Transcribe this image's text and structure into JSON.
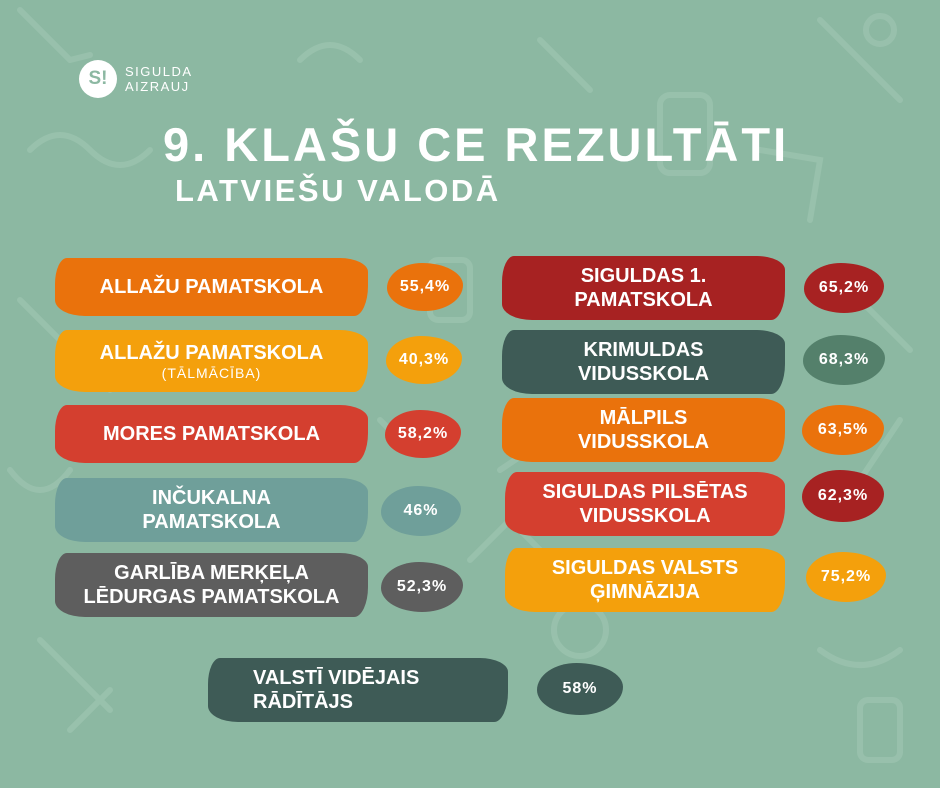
{
  "logo": {
    "mark": "S!",
    "line1": "SIGULDA",
    "line2": "AIZRAUJ"
  },
  "title": "9. KLAŠU CE REZULTĀTI",
  "subtitle": "LATVIEŠU VALODĀ",
  "colors": {
    "background": "#8cb8a2",
    "orange": "#ea720c",
    "yellow": "#f4a00c",
    "red": "#d43f2f",
    "teal": "#6f9f9a",
    "gray": "#5e5e5e",
    "darkred": "#a72222",
    "darkslate": "#3e5b56",
    "green": "#54806b"
  },
  "left_schools": [
    {
      "name_line1": "ALLAŽU PAMATSKOLA",
      "name_line2": "",
      "value": "55,4%"
    },
    {
      "name_line1": "ALLAŽU PAMATSKOLA",
      "name_line2": "",
      "note": "(TĀLMĀCĪBA)",
      "value": "40,3%"
    },
    {
      "name_line1": "MORES PAMATSKOLA",
      "name_line2": "",
      "value": "58,2%"
    },
    {
      "name_line1": "INČUKALNA",
      "name_line2": "PAMATSKOLA",
      "value": "46%"
    },
    {
      "name_line1": "GARLĪBA MERĶEĻA",
      "name_line2": "LĒDURGAS PAMATSKOLA",
      "value": "52,3%"
    }
  ],
  "right_schools": [
    {
      "name_line1": "SIGULDAS 1.",
      "name_line2": "PAMATSKOLA",
      "value": "65,2%"
    },
    {
      "name_line1": "KRIMULDAS",
      "name_line2": "VIDUSSKOLA",
      "value": "68,3%"
    },
    {
      "name_line1": "MĀLPILS",
      "name_line2": "VIDUSSKOLA",
      "value": "63,5%"
    },
    {
      "name_line1": "SIGULDAS PILSĒTAS",
      "name_line2": "VIDUSSKOLA",
      "value": "62,3%"
    },
    {
      "name_line1": "SIGULDAS VALSTS",
      "name_line2": "ĢIMNĀZIJA",
      "value": "75,2%"
    }
  ],
  "national": {
    "name_line1": "VALSTĪ VIDĒJAIS",
    "name_line2": "RĀDĪTĀJS",
    "value": "58%"
  }
}
